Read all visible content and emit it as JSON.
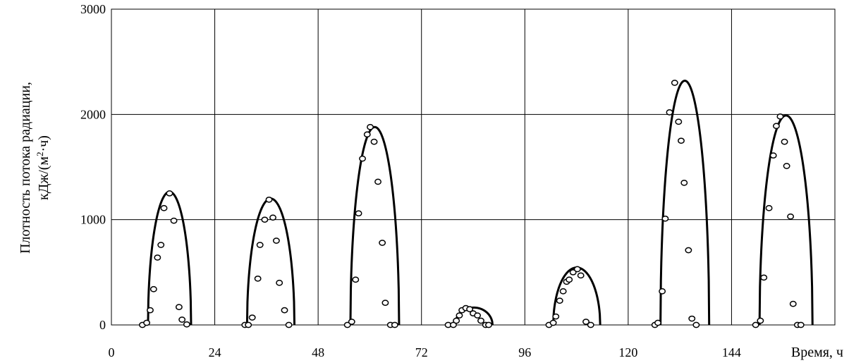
{
  "chart_data": {
    "type": "scatter",
    "title": "",
    "ylabel_line1": "Плотность потока радиации,",
    "ylabel_line2_prefix": "кДж/(м",
    "ylabel_line2_sup": "2",
    "ylabel_line2_suffix": "·ч)",
    "xlabel": "Время, ч",
    "xlim": [
      0,
      168
    ],
    "ylim": [
      0,
      3000
    ],
    "xticks": [
      0,
      24,
      48,
      72,
      96,
      120,
      144
    ],
    "yticks": [
      0,
      1000,
      2000,
      3000
    ],
    "grid": true,
    "series": [
      {
        "kind": "line",
        "peaks": [
          {
            "start": 8.5,
            "end": 18.5,
            "peak": 1265
          },
          {
            "start": 31.5,
            "end": 42.5,
            "peak": 1200
          },
          {
            "start": 55.5,
            "end": 66.8,
            "peak": 1880
          },
          {
            "start": 79.8,
            "end": 88.5,
            "peak": 165
          },
          {
            "start": 102.6,
            "end": 113.5,
            "peak": 545
          },
          {
            "start": 127.5,
            "end": 138.8,
            "peak": 2320
          },
          {
            "start": 150.5,
            "end": 162.8,
            "peak": 1990
          }
        ]
      },
      {
        "kind": "points",
        "points": [
          [
            7.2,
            0
          ],
          [
            8.2,
            20
          ],
          [
            9.0,
            140
          ],
          [
            9.8,
            340
          ],
          [
            10.7,
            640
          ],
          [
            11.5,
            760
          ],
          [
            12.2,
            1110
          ],
          [
            13.5,
            1250
          ],
          [
            14.5,
            990
          ],
          [
            15.7,
            170
          ],
          [
            16.4,
            50
          ],
          [
            17.5,
            5
          ],
          [
            31.0,
            0
          ],
          [
            31.8,
            0
          ],
          [
            32.7,
            70
          ],
          [
            34.0,
            440
          ],
          [
            34.5,
            760
          ],
          [
            35.6,
            1000
          ],
          [
            36.6,
            1190
          ],
          [
            37.5,
            1020
          ],
          [
            38.3,
            800
          ],
          [
            39.0,
            400
          ],
          [
            40.2,
            140
          ],
          [
            41.2,
            0
          ],
          [
            54.8,
            0
          ],
          [
            55.8,
            30
          ],
          [
            56.7,
            430
          ],
          [
            57.4,
            1060
          ],
          [
            58.3,
            1580
          ],
          [
            59.4,
            1810
          ],
          [
            60.1,
            1880
          ],
          [
            61.0,
            1740
          ],
          [
            61.9,
            1360
          ],
          [
            62.9,
            780
          ],
          [
            63.6,
            210
          ],
          [
            64.8,
            0
          ],
          [
            65.8,
            0
          ],
          [
            78.2,
            0
          ],
          [
            79.4,
            0
          ],
          [
            80.1,
            40
          ],
          [
            80.8,
            90
          ],
          [
            81.4,
            140
          ],
          [
            82.3,
            160
          ],
          [
            83.2,
            150
          ],
          [
            84.0,
            110
          ],
          [
            85.0,
            90
          ],
          [
            85.8,
            40
          ],
          [
            86.9,
            0
          ],
          [
            87.6,
            0
          ],
          [
            101.6,
            0
          ],
          [
            102.6,
            20
          ],
          [
            103.2,
            80
          ],
          [
            104.1,
            230
          ],
          [
            104.9,
            320
          ],
          [
            105.7,
            410
          ],
          [
            106.3,
            430
          ],
          [
            107.2,
            500
          ],
          [
            108.2,
            530
          ],
          [
            109.0,
            470
          ],
          [
            110.2,
            30
          ],
          [
            111.3,
            0
          ],
          [
            126.2,
            0
          ],
          [
            126.9,
            20
          ],
          [
            127.9,
            320
          ],
          [
            128.6,
            1010
          ],
          [
            129.6,
            2020
          ],
          [
            130.8,
            2300
          ],
          [
            131.7,
            1930
          ],
          [
            132.3,
            1750
          ],
          [
            133.0,
            1350
          ],
          [
            134.0,
            710
          ],
          [
            134.8,
            60
          ],
          [
            135.8,
            0
          ],
          [
            149.6,
            0
          ],
          [
            150.7,
            40
          ],
          [
            151.5,
            450
          ],
          [
            152.7,
            1110
          ],
          [
            153.7,
            1610
          ],
          [
            154.4,
            1890
          ],
          [
            155.3,
            1980
          ],
          [
            156.3,
            1740
          ],
          [
            156.8,
            1510
          ],
          [
            157.7,
            1030
          ],
          [
            158.3,
            200
          ],
          [
            159.3,
            0
          ],
          [
            160.1,
            0
          ]
        ]
      }
    ]
  }
}
